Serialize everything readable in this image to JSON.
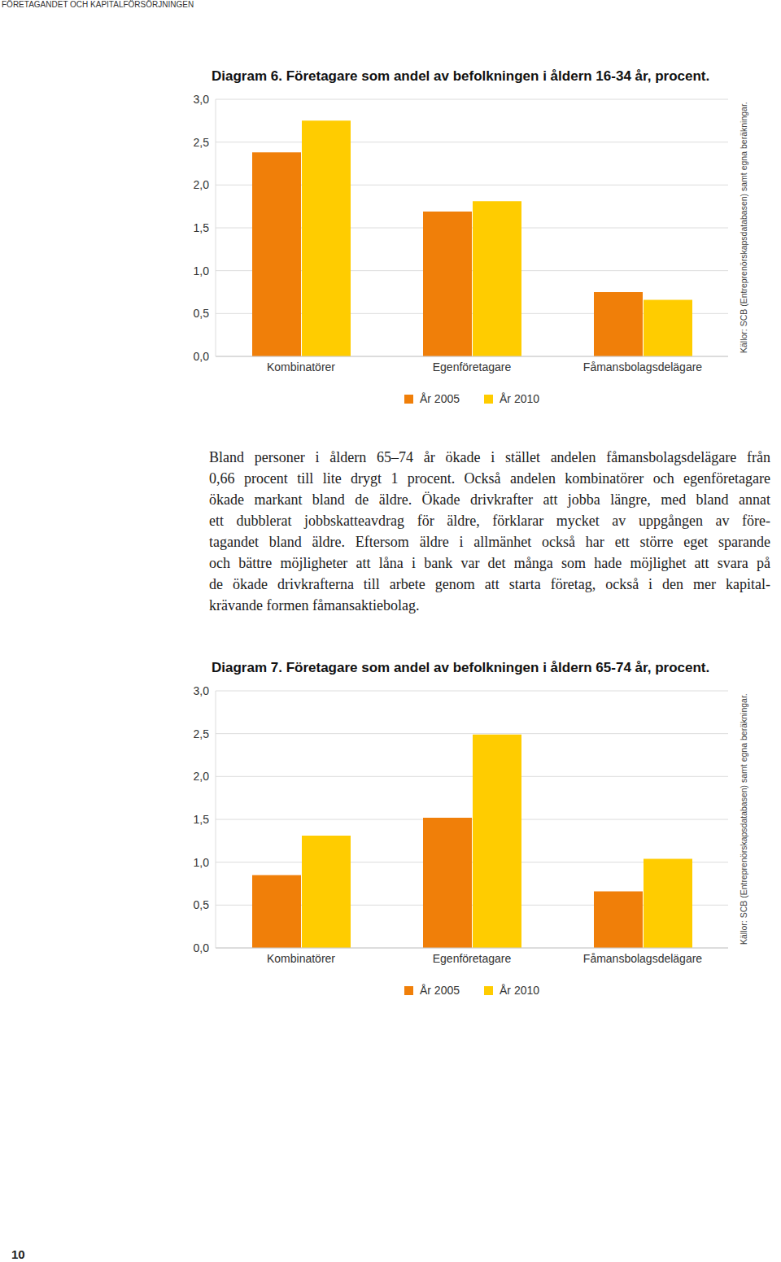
{
  "header": "FÖRETAGANDET OCH KAPITALFÖRSÖRJNINGEN",
  "chart_data": [
    {
      "type": "bar",
      "title": "Diagram 6. Företagare som andel av befolkningen i åldern 16-34 år, procent.",
      "categories": [
        "Kombinatörer",
        "Egenföretagare",
        "Fåmansbolagsdelägare"
      ],
      "series": [
        {
          "name": "År 2005",
          "color": "#f07f09",
          "values": [
            2.38,
            1.69,
            0.75
          ]
        },
        {
          "name": "År 2010",
          "color": "#ffcc00",
          "values": [
            2.75,
            1.81,
            0.66
          ]
        }
      ],
      "ylim": [
        0,
        3
      ],
      "yticks": [
        {
          "value": 0,
          "label": "0,0"
        },
        {
          "value": 0.5,
          "label": "0,5"
        },
        {
          "value": 1,
          "label": "1,0"
        },
        {
          "value": 1.5,
          "label": "1,5"
        },
        {
          "value": 2,
          "label": "2,0"
        },
        {
          "value": 2.5,
          "label": "2,5"
        },
        {
          "value": 3,
          "label": "3,0"
        }
      ],
      "grid": true,
      "legend": "bottom",
      "source": "Källor: SCB (Entreprenörskapsdatabasen) samt egna beräkningar."
    },
    {
      "type": "bar",
      "title": "Diagram 7. Företagare som andel av befolkningen i åldern 65-74 år, procent.",
      "categories": [
        "Kombinatörer",
        "Egenföretagare",
        "Fåmansbolagsdelägare"
      ],
      "series": [
        {
          "name": "År 2005",
          "color": "#f07f09",
          "values": [
            0.85,
            1.52,
            0.66
          ]
        },
        {
          "name": "År 2010",
          "color": "#ffcc00",
          "values": [
            1.31,
            2.49,
            1.04
          ]
        }
      ],
      "ylim": [
        0,
        3
      ],
      "yticks": [
        {
          "value": 0,
          "label": "0,0"
        },
        {
          "value": 0.5,
          "label": "0,5"
        },
        {
          "value": 1,
          "label": "1,0"
        },
        {
          "value": 1.5,
          "label": "1,5"
        },
        {
          "value": 2,
          "label": "2,0"
        },
        {
          "value": 2.5,
          "label": "2,5"
        },
        {
          "value": 3,
          "label": "3,0"
        }
      ],
      "grid": true,
      "legend": "bottom",
      "source": "Källor: SCB (Entreprenörskapsdatabasen) samt egna beräkningar."
    }
  ],
  "text": [
    "Bland personer i åldern 65–74 år ökade i stället andelen fåmansbolagsdelägare från",
    "0,66 procent till lite drygt 1 procent. Också andelen kombinatörer och egenföretagare",
    "ökade markant bland de äldre. Ökade drivkrafter att jobba längre, med bland annat",
    "ett dubblerat jobbskatteavdrag för äldre, förklarar mycket av uppgången av före-",
    "tagandet bland äldre. Eftersom äldre i allmänhet också har ett större eget sparande",
    "och bättre möjligheter att låna i bank var det många som hade möjlighet att svara på",
    "de ökade drivkrafterna till arbete genom att starta företag, också i den mer kapital-",
    "krävande formen fåmansaktiebolag."
  ],
  "page_number": "10"
}
